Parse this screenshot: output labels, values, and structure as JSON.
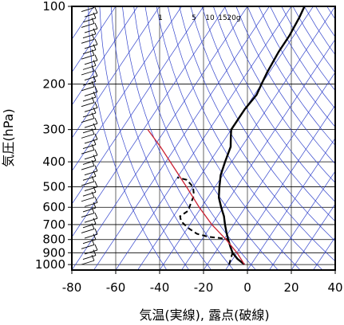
{
  "chart_data": {
    "type": "line",
    "xlabel": "気温(実線), 露点(破線)",
    "ylabel": "気圧(hPa)",
    "xlim": [
      -80,
      40
    ],
    "ylim": [
      1050,
      100
    ],
    "y_scale": "log",
    "x_ticks": [
      "-80",
      "-60",
      "-40",
      "-20",
      "0",
      "20",
      "40"
    ],
    "y_ticks": [
      "100",
      "200",
      "300",
      "400",
      "500",
      "600",
      "700",
      "800",
      "900",
      "1000"
    ],
    "mixing_ratio_labels": [
      "1",
      "5",
      "10",
      "15",
      "20g"
    ],
    "colors": {
      "isotherm": "#3344cc",
      "adiabat": "#3344cc",
      "parcel": "#cc2233",
      "temperature": "#000000",
      "dewpoint": "#000000",
      "grid": "#000000"
    },
    "series": [
      {
        "kind": "temperature",
        "points": [
          [
            1000,
            -3
          ],
          [
            950,
            -8
          ],
          [
            900,
            -12
          ],
          [
            850,
            -15
          ],
          [
            800,
            -18
          ],
          [
            750,
            -21
          ],
          [
            700,
            -24
          ],
          [
            650,
            -27
          ],
          [
            600,
            -31
          ],
          [
            550,
            -35
          ],
          [
            500,
            -38
          ],
          [
            450,
            -41
          ],
          [
            400,
            -43
          ],
          [
            350,
            -45
          ],
          [
            320,
            -48
          ],
          [
            300,
            -50
          ],
          [
            280,
            -50
          ],
          [
            250,
            -50
          ],
          [
            220,
            -49
          ],
          [
            200,
            -50
          ],
          [
            180,
            -51
          ],
          [
            150,
            -52
          ],
          [
            130,
            -52
          ],
          [
            110,
            -53
          ],
          [
            100,
            -54
          ]
        ]
      },
      {
        "kind": "dewpoint",
        "points": [
          [
            1000,
            -10
          ],
          [
            950,
            -11
          ],
          [
            900,
            -12
          ],
          [
            850,
            -15
          ],
          [
            800,
            -18
          ],
          [
            790,
            -22
          ],
          [
            780,
            -28
          ],
          [
            760,
            -34
          ],
          [
            720,
            -40
          ],
          [
            680,
            -45
          ],
          [
            650,
            -47
          ],
          [
            620,
            -45
          ],
          [
            580,
            -46
          ],
          [
            540,
            -47
          ],
          [
            500,
            -50
          ],
          [
            470,
            -55
          ],
          [
            460,
            -60
          ]
        ]
      },
      {
        "kind": "parcel",
        "points": [
          [
            1000,
            -3
          ],
          [
            900,
            -10
          ],
          [
            800,
            -19
          ],
          [
            700,
            -30
          ],
          [
            600,
            -41
          ],
          [
            500,
            -53
          ],
          [
            400,
            -68
          ],
          [
            350,
            -77
          ],
          [
            300,
            -88
          ]
        ]
      }
    ]
  }
}
